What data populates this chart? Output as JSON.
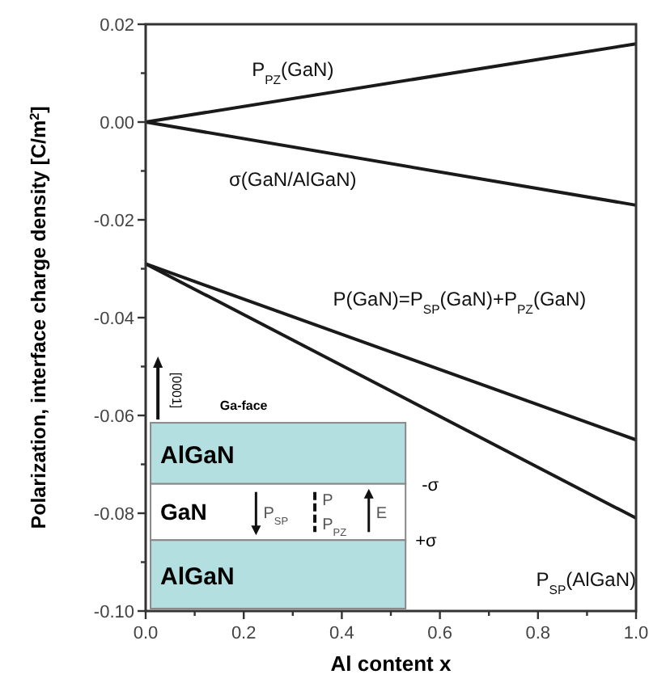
{
  "chart_data": {
    "type": "line",
    "xlabel": "Al content x",
    "ylabel": "Polarization, interface charge density [C/m$^{2}$]",
    "x": [
      0,
      1
    ],
    "series": [
      {
        "name": "P$_{PZ}$(GaN)",
        "color": "#1a1a1a",
        "values": [
          0,
          0.016
        ]
      },
      {
        "name": "σ(GaN/AlGaN)",
        "color": "#1a1a1a",
        "values": [
          0,
          -0.017
        ]
      },
      {
        "name": "P(GaN)=P$_{SP}$(GaN)+P$_{PZ}$(GaN)",
        "color": "#1a1a1a",
        "values": [
          -0.029,
          -0.065
        ]
      },
      {
        "name": "P$_{SP}$(AlGaN)",
        "color": "#1a1a1a",
        "values": [
          -0.029,
          -0.081
        ]
      }
    ],
    "xlim": [
      0,
      1
    ],
    "ylim": [
      -0.1,
      0.02
    ],
    "xticks": [
      {
        "value": 0,
        "label": "0.0"
      },
      {
        "value": 0.1,
        "label": null
      },
      {
        "value": 0.2,
        "label": "0.2"
      },
      {
        "value": 0.3,
        "label": null
      },
      {
        "value": 0.4,
        "label": "0.4"
      },
      {
        "value": 0.5,
        "label": null
      },
      {
        "value": 0.6,
        "label": "0.6"
      },
      {
        "value": 0.7,
        "label": null
      },
      {
        "value": 0.8,
        "label": "0.8"
      },
      {
        "value": 0.9,
        "label": null
      },
      {
        "value": 1,
        "label": "1.0"
      }
    ],
    "yticks": [
      {
        "value": -0.1,
        "label": "-0.10"
      },
      {
        "value": -0.09,
        "label": null
      },
      {
        "value": -0.08,
        "label": "-0.08"
      },
      {
        "value": -0.07,
        "label": null
      },
      {
        "value": -0.06,
        "label": "-0.06"
      },
      {
        "value": -0.05,
        "label": null
      },
      {
        "value": -0.04,
        "label": "-0.04"
      },
      {
        "value": -0.03,
        "label": null
      },
      {
        "value": -0.02,
        "label": "-0.02"
      },
      {
        "value": -0.01,
        "label": null
      },
      {
        "value": 0,
        "label": "0.00"
      },
      {
        "value": 0.01,
        "label": null
      },
      {
        "value": 0.02,
        "label": "0.02"
      }
    ],
    "grid": false,
    "line_style": "solid",
    "annotations": [
      "Ga-face",
      "[0001]",
      "AlGaN",
      "GaN",
      "AlGaN",
      "P$_{SP}$",
      "P",
      "P$_{PZ}$",
      "E",
      "-σ",
      "+σ"
    ]
  }
}
